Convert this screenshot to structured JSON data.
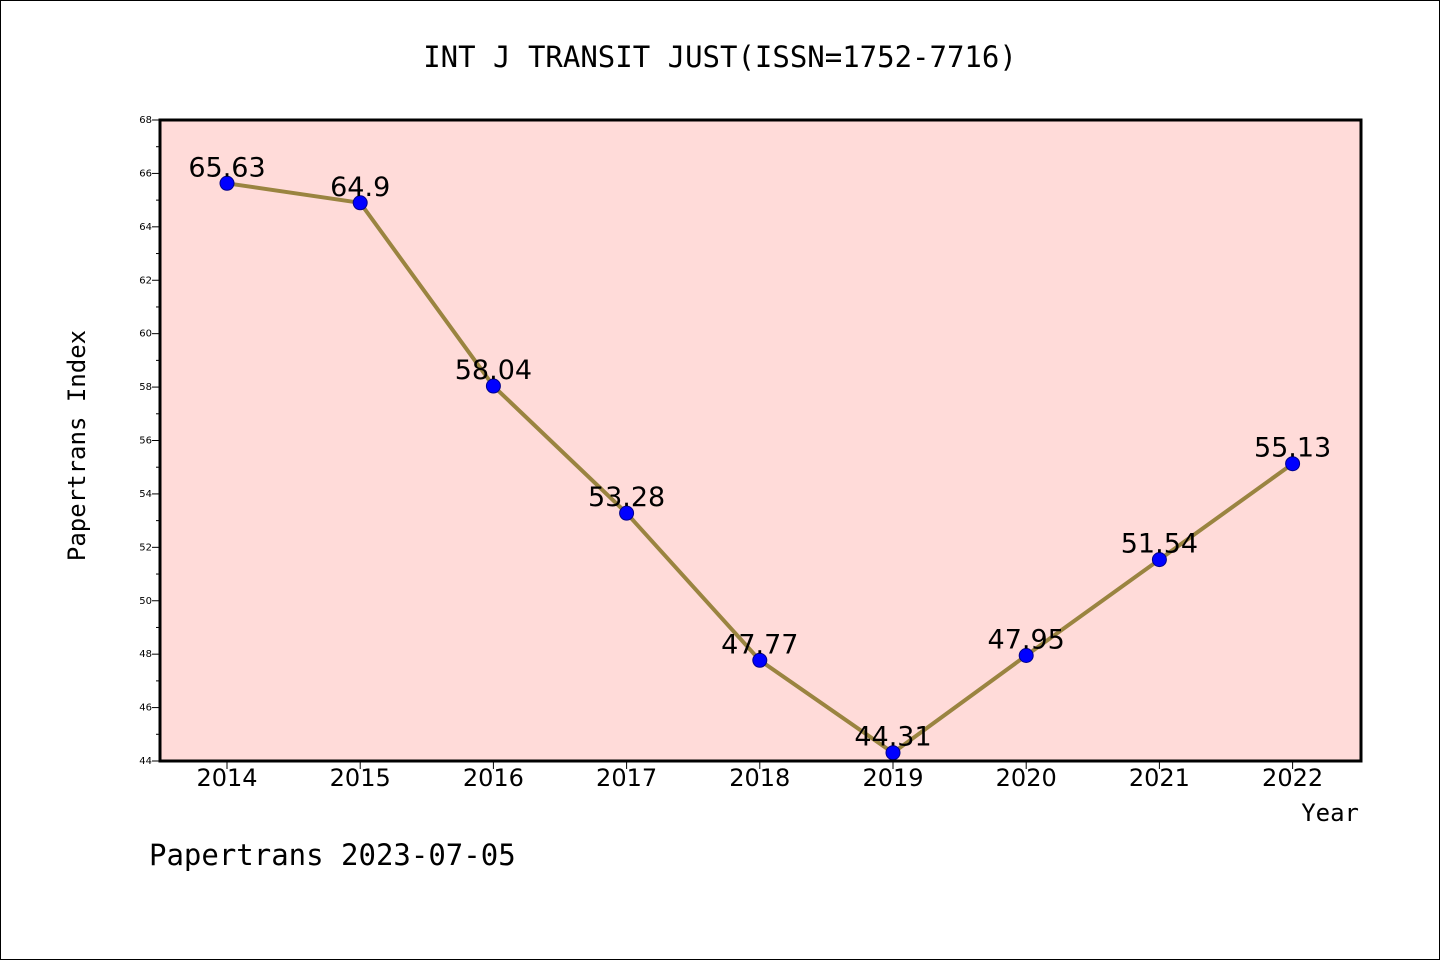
{
  "chart_data": {
    "type": "line",
    "title": "INT J TRANSIT JUST(ISSN=1752-7716)",
    "xlabel": "Year",
    "ylabel": "Papertrans Index",
    "footer": "Papertrans 2023-07-05",
    "x": [
      "2014",
      "2015",
      "2016",
      "2017",
      "2018",
      "2019",
      "2020",
      "2021",
      "2022"
    ],
    "series": [
      {
        "values": [
          65.63,
          64.9,
          58.04,
          53.28,
          47.77,
          44.31,
          47.95,
          51.54,
          55.13
        ],
        "labels": [
          "65.63",
          "64.9",
          "58.04",
          "53.28",
          "47.77",
          "44.31",
          "47.95",
          "51.54",
          "55.13"
        ]
      }
    ],
    "ylim": [
      44,
      68
    ],
    "yticks": [
      "44",
      "46",
      "48",
      "50",
      "52",
      "54",
      "56",
      "58",
      "60",
      "62",
      "64",
      "66",
      "68"
    ],
    "grid": false,
    "colors": {
      "plot_background": "#ffdbd9",
      "line": "#9a8440",
      "marker": "#0000ff"
    }
  }
}
